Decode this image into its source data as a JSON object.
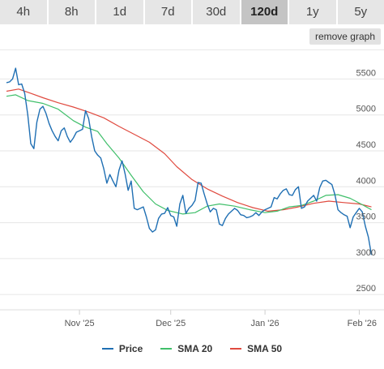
{
  "tabs": [
    {
      "label": "4h"
    },
    {
      "label": "8h"
    },
    {
      "label": "1d"
    },
    {
      "label": "7d"
    },
    {
      "label": "30d"
    },
    {
      "label": "120d",
      "active": true
    },
    {
      "label": "1y"
    },
    {
      "label": "5y"
    }
  ],
  "remove_graph_label": "remove graph",
  "colors": {
    "price": "#1f6fb3",
    "sma20": "#3fbf6a",
    "sma50": "#e04a3f",
    "grid": "#e6e6e6",
    "axis_text": "#555555"
  },
  "chart_data": {
    "type": "line",
    "x_type": "date",
    "xlim": [
      "2025-10-08",
      "2026-02-07"
    ],
    "ylim": [
      2400,
      5900
    ],
    "y_ticks": [
      2500,
      3000,
      3500,
      4000,
      4500,
      5000,
      5500
    ],
    "x_ticks": [
      {
        "date": "2025-11-01",
        "label": "Nov '25"
      },
      {
        "date": "2025-12-01",
        "label": "Dec '25"
      },
      {
        "date": "2026-01-01",
        "label": "Jan '26"
      },
      {
        "date": "2026-02-01",
        "label": "Feb '26"
      }
    ],
    "grid": true,
    "legend_position": "bottom",
    "series": [
      {
        "name": "Price",
        "points": [
          [
            "2025-10-08",
            5450
          ],
          [
            "2025-10-09",
            5460
          ],
          [
            "2025-10-10",
            5500
          ],
          [
            "2025-10-11",
            5650
          ],
          [
            "2025-10-12",
            5420
          ],
          [
            "2025-10-13",
            5430
          ],
          [
            "2025-10-14",
            5300
          ],
          [
            "2025-10-15",
            5000
          ],
          [
            "2025-10-16",
            4600
          ],
          [
            "2025-10-17",
            4530
          ],
          [
            "2025-10-18",
            4900
          ],
          [
            "2025-10-19",
            5080
          ],
          [
            "2025-10-20",
            5120
          ],
          [
            "2025-10-21",
            5020
          ],
          [
            "2025-10-22",
            4880
          ],
          [
            "2025-10-23",
            4780
          ],
          [
            "2025-10-24",
            4700
          ],
          [
            "2025-10-25",
            4640
          ],
          [
            "2025-10-26",
            4780
          ],
          [
            "2025-10-27",
            4820
          ],
          [
            "2025-10-28",
            4700
          ],
          [
            "2025-10-29",
            4620
          ],
          [
            "2025-10-30",
            4680
          ],
          [
            "2025-10-31",
            4760
          ],
          [
            "2025-11-01",
            4780
          ],
          [
            "2025-11-02",
            4800
          ],
          [
            "2025-11-03",
            5060
          ],
          [
            "2025-11-04",
            4950
          ],
          [
            "2025-11-05",
            4700
          ],
          [
            "2025-11-06",
            4500
          ],
          [
            "2025-11-07",
            4440
          ],
          [
            "2025-11-08",
            4400
          ],
          [
            "2025-11-09",
            4250
          ],
          [
            "2025-11-10",
            4050
          ],
          [
            "2025-11-11",
            4170
          ],
          [
            "2025-11-12",
            4080
          ],
          [
            "2025-11-13",
            4000
          ],
          [
            "2025-11-14",
            4230
          ],
          [
            "2025-11-15",
            4360
          ],
          [
            "2025-11-16",
            4180
          ],
          [
            "2025-11-17",
            3950
          ],
          [
            "2025-11-18",
            4080
          ],
          [
            "2025-11-19",
            3700
          ],
          [
            "2025-11-20",
            3680
          ],
          [
            "2025-11-21",
            3700
          ],
          [
            "2025-11-22",
            3720
          ],
          [
            "2025-11-23",
            3580
          ],
          [
            "2025-11-24",
            3420
          ],
          [
            "2025-11-25",
            3370
          ],
          [
            "2025-11-26",
            3400
          ],
          [
            "2025-11-27",
            3560
          ],
          [
            "2025-11-28",
            3620
          ],
          [
            "2025-11-29",
            3630
          ],
          [
            "2025-11-30",
            3710
          ],
          [
            "2025-12-01",
            3600
          ],
          [
            "2025-12-02",
            3580
          ],
          [
            "2025-12-03",
            3450
          ],
          [
            "2025-12-04",
            3760
          ],
          [
            "2025-12-05",
            3880
          ],
          [
            "2025-12-06",
            3630
          ],
          [
            "2025-12-07",
            3700
          ],
          [
            "2025-12-08",
            3740
          ],
          [
            "2025-12-09",
            3810
          ],
          [
            "2025-12-10",
            4060
          ],
          [
            "2025-12-11",
            4050
          ],
          [
            "2025-12-12",
            3900
          ],
          [
            "2025-12-13",
            3760
          ],
          [
            "2025-12-14",
            3650
          ],
          [
            "2025-12-15",
            3700
          ],
          [
            "2025-12-16",
            3680
          ],
          [
            "2025-12-17",
            3480
          ],
          [
            "2025-12-18",
            3460
          ],
          [
            "2025-12-19",
            3560
          ],
          [
            "2025-12-20",
            3620
          ],
          [
            "2025-12-21",
            3660
          ],
          [
            "2025-12-22",
            3700
          ],
          [
            "2025-12-23",
            3670
          ],
          [
            "2025-12-24",
            3610
          ],
          [
            "2025-12-25",
            3600
          ],
          [
            "2025-12-26",
            3570
          ],
          [
            "2025-12-27",
            3580
          ],
          [
            "2025-12-28",
            3600
          ],
          [
            "2025-12-29",
            3640
          ],
          [
            "2025-12-30",
            3600
          ],
          [
            "2025-12-31",
            3650
          ],
          [
            "2026-01-01",
            3680
          ],
          [
            "2026-01-02",
            3700
          ],
          [
            "2026-01-03",
            3720
          ],
          [
            "2026-01-04",
            3850
          ],
          [
            "2026-01-05",
            3830
          ],
          [
            "2026-01-06",
            3900
          ],
          [
            "2026-01-07",
            3950
          ],
          [
            "2026-01-08",
            3970
          ],
          [
            "2026-01-09",
            3890
          ],
          [
            "2026-01-10",
            3880
          ],
          [
            "2026-01-11",
            3960
          ],
          [
            "2026-01-12",
            4000
          ],
          [
            "2026-01-13",
            3700
          ],
          [
            "2026-01-14",
            3720
          ],
          [
            "2026-01-15",
            3800
          ],
          [
            "2026-01-16",
            3840
          ],
          [
            "2026-01-17",
            3880
          ],
          [
            "2026-01-18",
            3800
          ],
          [
            "2026-01-19",
            3990
          ],
          [
            "2026-01-20",
            4080
          ],
          [
            "2026-01-21",
            4090
          ],
          [
            "2026-01-22",
            4060
          ],
          [
            "2026-01-23",
            4030
          ],
          [
            "2026-01-24",
            3890
          ],
          [
            "2026-01-25",
            3680
          ],
          [
            "2026-01-26",
            3640
          ],
          [
            "2026-01-27",
            3610
          ],
          [
            "2026-01-28",
            3590
          ],
          [
            "2026-01-29",
            3430
          ],
          [
            "2026-01-30",
            3580
          ],
          [
            "2026-01-31",
            3640
          ],
          [
            "2026-02-01",
            3700
          ],
          [
            "2026-02-02",
            3650
          ],
          [
            "2026-02-03",
            3450
          ],
          [
            "2026-02-04",
            3300
          ],
          [
            "2026-02-05",
            3050
          ]
        ]
      },
      {
        "name": "SMA 20",
        "points": [
          [
            "2025-10-08",
            5260
          ],
          [
            "2025-10-11",
            5280
          ],
          [
            "2025-10-15",
            5200
          ],
          [
            "2025-10-20",
            5160
          ],
          [
            "2025-10-25",
            5080
          ],
          [
            "2025-10-30",
            4920
          ],
          [
            "2025-11-03",
            4830
          ],
          [
            "2025-11-07",
            4770
          ],
          [
            "2025-11-10",
            4600
          ],
          [
            "2025-11-14",
            4400
          ],
          [
            "2025-11-18",
            4160
          ],
          [
            "2025-11-22",
            3930
          ],
          [
            "2025-11-26",
            3760
          ],
          [
            "2025-11-30",
            3670
          ],
          [
            "2025-12-05",
            3620
          ],
          [
            "2025-12-09",
            3640
          ],
          [
            "2025-12-13",
            3730
          ],
          [
            "2025-12-17",
            3760
          ],
          [
            "2025-12-22",
            3730
          ],
          [
            "2025-12-27",
            3680
          ],
          [
            "2026-01-01",
            3640
          ],
          [
            "2026-01-05",
            3660
          ],
          [
            "2026-01-09",
            3720
          ],
          [
            "2026-01-13",
            3740
          ],
          [
            "2026-01-17",
            3800
          ],
          [
            "2026-01-21",
            3880
          ],
          [
            "2026-01-25",
            3890
          ],
          [
            "2026-01-29",
            3840
          ],
          [
            "2026-02-02",
            3750
          ],
          [
            "2026-02-05",
            3680
          ]
        ]
      },
      {
        "name": "SMA 50",
        "points": [
          [
            "2025-10-08",
            5330
          ],
          [
            "2025-10-12",
            5360
          ],
          [
            "2025-10-16",
            5300
          ],
          [
            "2025-10-20",
            5240
          ],
          [
            "2025-10-25",
            5170
          ],
          [
            "2025-10-30",
            5110
          ],
          [
            "2025-11-04",
            5040
          ],
          [
            "2025-11-09",
            4960
          ],
          [
            "2025-11-14",
            4840
          ],
          [
            "2025-11-19",
            4730
          ],
          [
            "2025-11-24",
            4620
          ],
          [
            "2025-11-29",
            4460
          ],
          [
            "2025-12-03",
            4280
          ],
          [
            "2025-12-08",
            4100
          ],
          [
            "2025-12-13",
            3970
          ],
          [
            "2025-12-18",
            3870
          ],
          [
            "2025-12-23",
            3780
          ],
          [
            "2025-12-28",
            3710
          ],
          [
            "2026-01-02",
            3660
          ],
          [
            "2026-01-07",
            3680
          ],
          [
            "2026-01-12",
            3720
          ],
          [
            "2026-01-17",
            3770
          ],
          [
            "2026-01-22",
            3800
          ],
          [
            "2026-01-27",
            3780
          ],
          [
            "2026-02-01",
            3760
          ],
          [
            "2026-02-05",
            3720
          ]
        ]
      }
    ]
  }
}
